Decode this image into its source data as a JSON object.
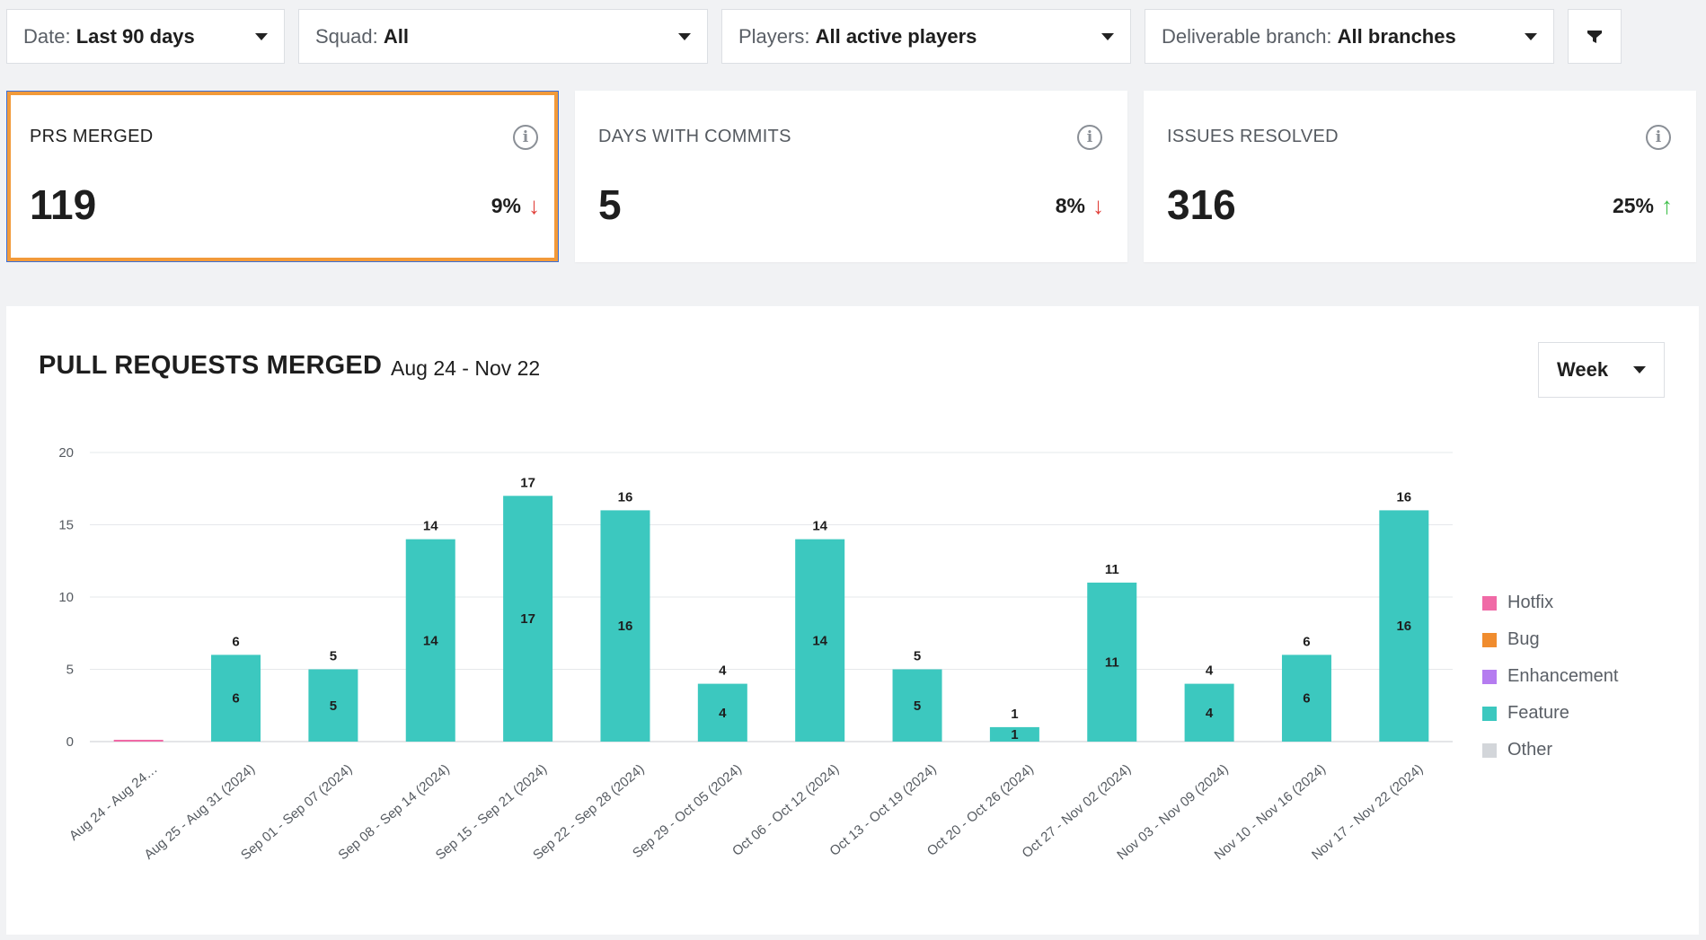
{
  "filters": [
    {
      "label": "Date: ",
      "value": "Last 90 days"
    },
    {
      "label": "Squad: ",
      "value": "All"
    },
    {
      "label": "Players: ",
      "value": "All active players"
    },
    {
      "label": "Deliverable branch: ",
      "value": "All branches"
    }
  ],
  "filter_icon": "funnel-icon",
  "cards": [
    {
      "title": "PRS MERGED",
      "value": "119",
      "delta": "9%",
      "direction": "down",
      "arrow": "↓",
      "arrow_color": "#e0403a",
      "selected": true
    },
    {
      "title": "DAYS WITH COMMITS",
      "value": "5",
      "delta": "8%",
      "direction": "down",
      "arrow": "↓",
      "arrow_color": "#e0403a",
      "selected": false
    },
    {
      "title": "ISSUES RESOLVED",
      "value": "316",
      "delta": "25%",
      "direction": "up",
      "arrow": "↑",
      "arrow_color": "#3fbf4a",
      "selected": false
    }
  ],
  "info_icon_glyph": "i",
  "chart_panel": {
    "title": "PULL REQUESTS MERGED",
    "subtitle": "Aug 24 - Nov 22",
    "granularity": "Week"
  },
  "chart_data": {
    "type": "bar",
    "stacked": true,
    "title": "PULL REQUESTS MERGED",
    "subtitle": "Aug 24 - Nov 22",
    "xlabel": "",
    "ylabel": "",
    "ylim": [
      0,
      20
    ],
    "yticks": [
      0,
      5,
      10,
      15,
      20
    ],
    "grid": true,
    "legend_position": "right",
    "categories": [
      "Aug 24 - Aug 24…",
      "Aug 25 - Aug 31 (2024)",
      "Sep 01 - Sep 07 (2024)",
      "Sep 08 - Sep 14 (2024)",
      "Sep 15 - Sep 21 (2024)",
      "Sep 22 - Sep 28 (2024)",
      "Sep 29 - Oct 05 (2024)",
      "Oct 06 - Oct 12 (2024)",
      "Oct 13 - Oct 19 (2024)",
      "Oct 20 - Oct 26 (2024)",
      "Oct 27 - Nov 02 (2024)",
      "Nov 03 - Nov 09 (2024)",
      "Nov 10 - Nov 16 (2024)",
      "Nov 17 - Nov 22 (2024)"
    ],
    "totals": [
      0,
      6,
      5,
      14,
      17,
      16,
      4,
      14,
      5,
      1,
      11,
      4,
      6,
      16
    ],
    "series": [
      {
        "name": "Hotfix",
        "color": "#f06aa6",
        "values": [
          0,
          0,
          0,
          0,
          0,
          0,
          0,
          0,
          0,
          0,
          0,
          0,
          0,
          0
        ]
      },
      {
        "name": "Bug",
        "color": "#f08c2e",
        "values": [
          0,
          0,
          0,
          0,
          0,
          0,
          0,
          0,
          0,
          0,
          0,
          0,
          0,
          0
        ]
      },
      {
        "name": "Enhancement",
        "color": "#b57cf0",
        "values": [
          0,
          0,
          0,
          0,
          0,
          0,
          0,
          0,
          0,
          0,
          0,
          0,
          0,
          0
        ]
      },
      {
        "name": "Feature",
        "color": "#3cc8bf",
        "values": [
          0,
          6,
          5,
          14,
          17,
          16,
          4,
          14,
          5,
          1,
          11,
          4,
          6,
          16
        ]
      },
      {
        "name": "Other",
        "color": "#d3d6da",
        "values": [
          0,
          0,
          0,
          0,
          0,
          0,
          0,
          0,
          0,
          0,
          0,
          0,
          0,
          0
        ]
      }
    ]
  }
}
